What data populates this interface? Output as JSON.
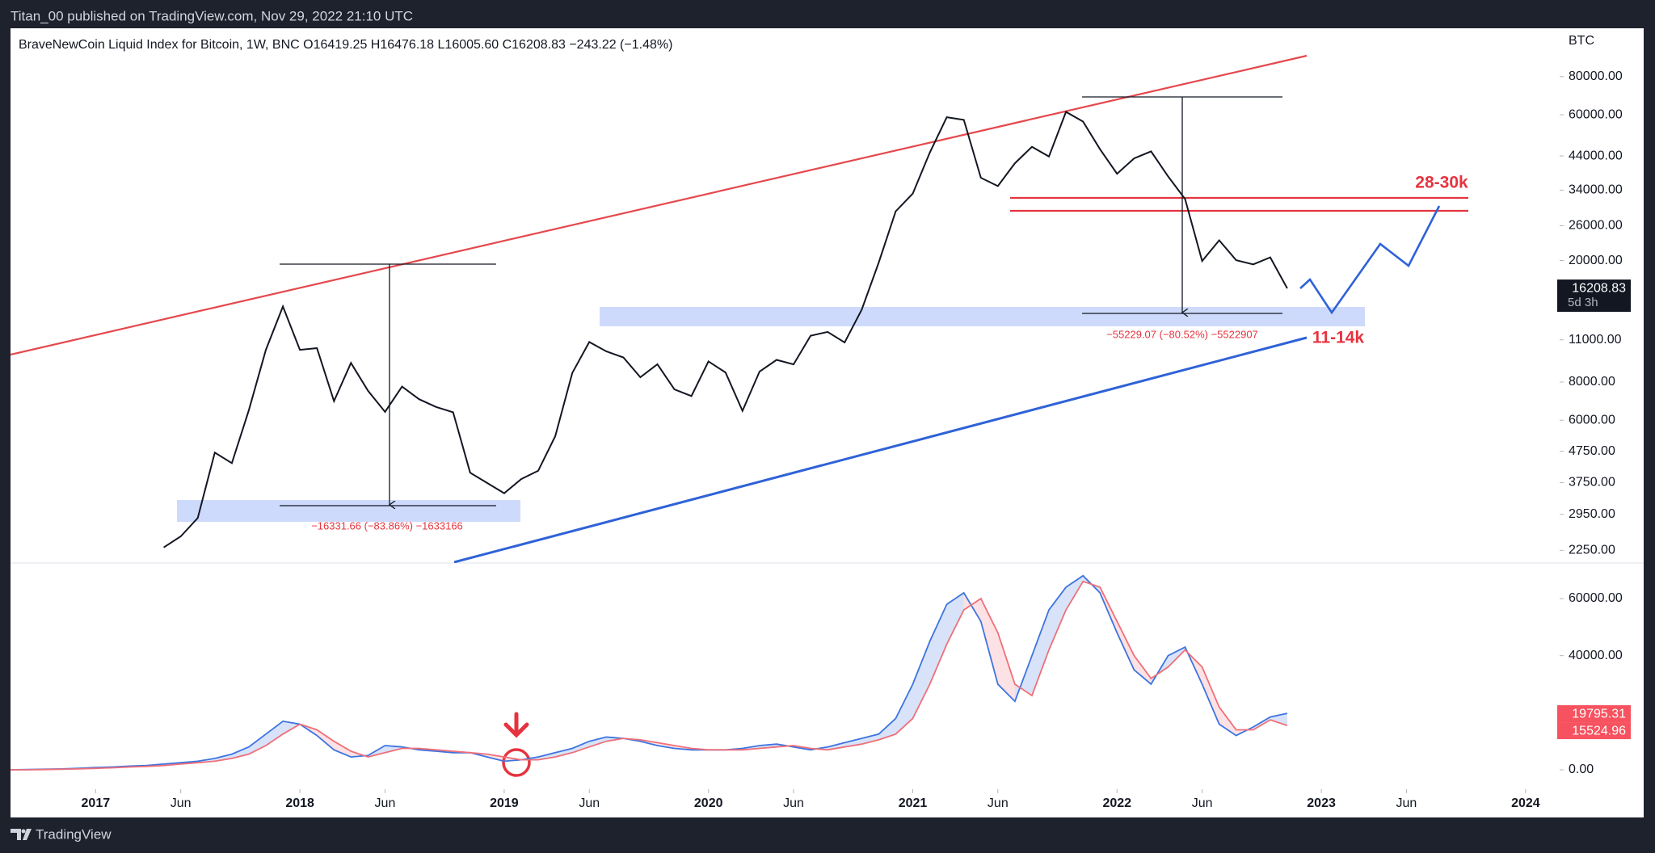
{
  "header": {
    "published": "Titan_00 published on TradingView.com, Nov 29, 2022 21:10 UTC",
    "brand": "TradingView"
  },
  "chart_data": [
    {
      "type": "line",
      "title": "BraveNewCoin Liquid Index for Bitcoin, 1W, BNC  O16419.25  H16476.18  L16005.60  C16208.83  −243.22 (−1.48%)",
      "y_unit": "BTC",
      "log_scale": true,
      "color": "#131722",
      "countdown": "5d 3h",
      "annotations": [
        "28-30k",
        "11-14k",
        "−55229.07 (−80.52%) −5522907",
        "−16331.66 (−83.86%) −1633166"
      ],
      "x": [
        "2017-05",
        "2017-06",
        "2017-07",
        "2017-08",
        "2017-09",
        "2017-10",
        "2017-11",
        "2017-12",
        "2018-01",
        "2018-02",
        "2018-03",
        "2018-04",
        "2018-05",
        "2018-06",
        "2018-07",
        "2018-08",
        "2018-09",
        "2018-10",
        "2018-11",
        "2018-12",
        "2019-01",
        "2019-02",
        "2019-03",
        "2019-04",
        "2019-05",
        "2019-06",
        "2019-07",
        "2019-08",
        "2019-09",
        "2019-10",
        "2019-11",
        "2019-12",
        "2020-01",
        "2020-02",
        "2020-03",
        "2020-04",
        "2020-05",
        "2020-06",
        "2020-07",
        "2020-08",
        "2020-09",
        "2020-10",
        "2020-11",
        "2020-12",
        "2021-01",
        "2021-02",
        "2021-03",
        "2021-04",
        "2021-05",
        "2021-06",
        "2021-07",
        "2021-08",
        "2021-09",
        "2021-10",
        "2021-11",
        "2021-12",
        "2022-01",
        "2022-02",
        "2022-03",
        "2022-04",
        "2022-05",
        "2022-06",
        "2022-07",
        "2022-08",
        "2022-09",
        "2022-10",
        "2022-11"
      ],
      "values": [
        2300,
        2500,
        2870,
        4700,
        4340,
        6470,
        10200,
        14150,
        10200,
        10330,
        6930,
        9240,
        7490,
        6390,
        7730,
        7030,
        6630,
        6370,
        4040,
        3740,
        3460,
        3850,
        4100,
        5320,
        8570,
        10820,
        10080,
        9630,
        8300,
        9150,
        7570,
        7200,
        9350,
        8600,
        6440,
        8660,
        9460,
        9140,
        11350,
        11680,
        10780,
        13800,
        19700,
        28990,
        33110,
        45140,
        58920,
        57750,
        37330,
        35040,
        41630,
        47130,
        43790,
        61320,
        57000,
        46300,
        38480,
        43190,
        45540,
        37710,
        31790,
        19930,
        23300,
        20050,
        19430,
        20490,
        16208.83
      ],
      "xlim": [
        "2016-08",
        "2024-03"
      ],
      "ylim": [
        2045,
        114500
      ],
      "yticks": [
        {
          "value": 80000,
          "label": "80000.00"
        },
        {
          "value": 60000,
          "label": "60000.00"
        },
        {
          "value": 44000,
          "label": "44000.00"
        },
        {
          "value": 34000,
          "label": "34000.00"
        },
        {
          "value": 26000,
          "label": "26000.00"
        },
        {
          "value": 20000,
          "label": "20000.00"
        },
        {
          "value": 11000,
          "label": "11000.00"
        },
        {
          "value": 8000,
          "label": "8000.00"
        },
        {
          "value": 6000,
          "label": "6000.00"
        },
        {
          "value": 4750,
          "label": "4750.00"
        },
        {
          "value": 3750,
          "label": "3750.00"
        },
        {
          "value": 2950,
          "label": "2950.00"
        },
        {
          "value": 2250,
          "label": "2250.00"
        }
      ]
    },
    {
      "type": "line",
      "x": [
        "2016-08",
        "2016-09",
        "2016-10",
        "2016-11",
        "2016-12",
        "2017-01",
        "2017-02",
        "2017-03",
        "2017-04",
        "2017-05",
        "2017-06",
        "2017-07",
        "2017-08",
        "2017-09",
        "2017-10",
        "2017-11",
        "2017-12",
        "2018-01",
        "2018-02",
        "2018-03",
        "2018-04",
        "2018-05",
        "2018-06",
        "2018-07",
        "2018-08",
        "2018-09",
        "2018-10",
        "2018-11",
        "2018-12",
        "2019-01",
        "2019-02",
        "2019-03",
        "2019-04",
        "2019-05",
        "2019-06",
        "2019-07",
        "2019-08",
        "2019-09",
        "2019-10",
        "2019-11",
        "2019-12",
        "2020-01",
        "2020-02",
        "2020-03",
        "2020-04",
        "2020-05",
        "2020-06",
        "2020-07",
        "2020-08",
        "2020-09",
        "2020-10",
        "2020-11",
        "2020-12",
        "2021-01",
        "2021-02",
        "2021-03",
        "2021-04",
        "2021-05",
        "2021-06",
        "2021-07",
        "2021-08",
        "2021-09",
        "2021-10",
        "2021-11",
        "2021-12",
        "2022-01",
        "2022-02",
        "2022-03",
        "2022-04",
        "2022-05",
        "2022-06",
        "2022-07",
        "2022-08",
        "2022-09",
        "2022-10",
        "2022-11"
      ],
      "series": [
        {
          "color": "#3d74e0",
          "values": [
            0,
            100,
            200,
            300,
            500,
            800,
            1000,
            1300,
            1500,
            2000,
            2500,
            3000,
            4000,
            5500,
            8000,
            12500,
            17000,
            16000,
            12000,
            7000,
            4500,
            5000,
            8500,
            8000,
            7000,
            6500,
            6000,
            6000,
            4500,
            3000,
            3500,
            4500,
            6000,
            7500,
            10000,
            11500,
            11000,
            10000,
            8500,
            7500,
            7000,
            7000,
            7000,
            7500,
            8500,
            9000,
            8000,
            7000,
            8000,
            9500,
            11000,
            12500,
            18000,
            30000,
            45000,
            58000,
            62000,
            52000,
            30000,
            24000,
            40000,
            56000,
            64000,
            68000,
            62000,
            48000,
            35000,
            30000,
            40000,
            43000,
            30000,
            16000,
            12000,
            15000,
            18500,
            19795.31
          ]
        },
        {
          "color": "#ef6f78",
          "values": [
            0,
            0,
            100,
            200,
            300,
            500,
            700,
            1000,
            1200,
            1500,
            2000,
            2500,
            3000,
            4000,
            5500,
            8500,
            12500,
            16000,
            14000,
            10000,
            6500,
            4500,
            6000,
            7500,
            7500,
            7000,
            6500,
            6000,
            5500,
            4500,
            3500,
            3500,
            4500,
            6000,
            8000,
            10000,
            11000,
            10500,
            9500,
            8500,
            7500,
            7000,
            7000,
            7000,
            7500,
            8000,
            8500,
            7500,
            7000,
            8000,
            9000,
            10500,
            12500,
            18000,
            30000,
            44000,
            56000,
            60000,
            48000,
            30000,
            26000,
            42000,
            56000,
            66000,
            64000,
            52000,
            40000,
            32000,
            36000,
            42000,
            36000,
            22000,
            14000,
            14000,
            17500,
            15524.96
          ]
        }
      ],
      "xlim": [
        "2016-08",
        "2024-03"
      ],
      "ylim": [
        -6790,
        72450
      ],
      "yticks": [
        {
          "value": 60000,
          "label": "60000.00"
        },
        {
          "value": 40000,
          "label": "40000.00"
        },
        {
          "value": 0,
          "label": "0.00"
        }
      ],
      "xticks": [
        {
          "value": "2017-01",
          "label": "2017"
        },
        {
          "value": "2017-06",
          "label": "Jun"
        },
        {
          "value": "2018-01",
          "label": "2018"
        },
        {
          "value": "2018-06",
          "label": "Jun"
        },
        {
          "value": "2019-01",
          "label": "2019"
        },
        {
          "value": "2019-06",
          "label": "Jun"
        },
        {
          "value": "2020-01",
          "label": "2020"
        },
        {
          "value": "2020-06",
          "label": "Jun"
        },
        {
          "value": "2021-01",
          "label": "2021"
        },
        {
          "value": "2021-06",
          "label": "Jun"
        },
        {
          "value": "2022-01",
          "label": "2022"
        },
        {
          "value": "2022-06",
          "label": "Jun"
        },
        {
          "value": "2023-01",
          "label": "2023"
        },
        {
          "value": "2023-06",
          "label": "Jun"
        },
        {
          "value": "2024-01",
          "label": "2024"
        }
      ]
    }
  ]
}
